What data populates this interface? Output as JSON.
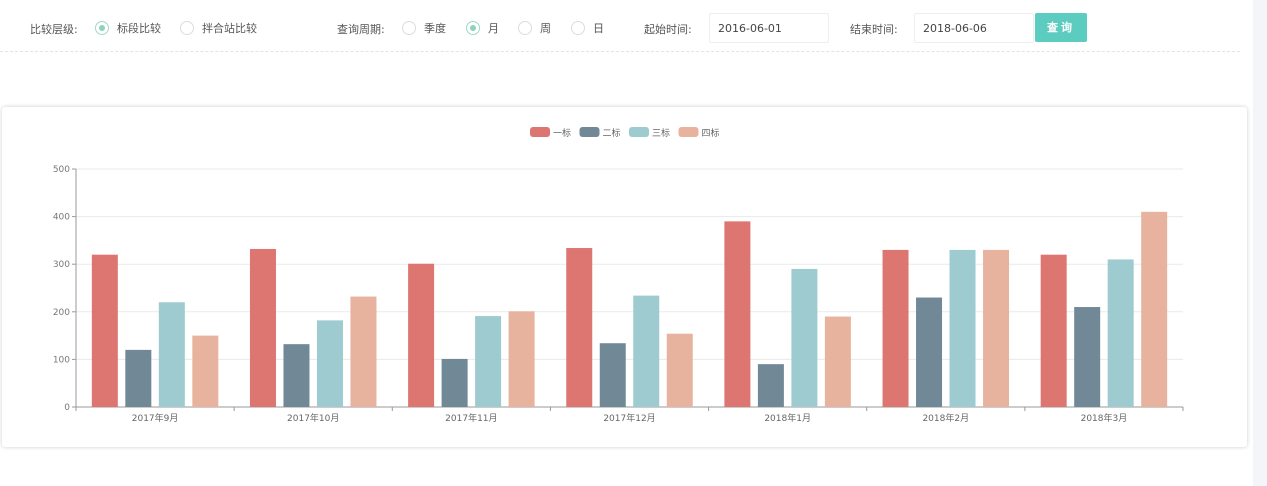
{
  "filters": {
    "level_label": "比较层级:",
    "level_options": [
      {
        "label": "标段比较",
        "selected": true
      },
      {
        "label": "拌合站比较",
        "selected": false
      }
    ],
    "period_label": "查询周期:",
    "period_options": [
      {
        "label": "季度",
        "selected": false
      },
      {
        "label": "月",
        "selected": true
      },
      {
        "label": "周",
        "selected": false
      },
      {
        "label": "日",
        "selected": false
      }
    ],
    "start_label": "起始时间:",
    "start_value": "2016-06-01",
    "end_label": "结束时间:",
    "end_value": "2018-06-06",
    "query_button": "查询",
    "accent": "#5ccbc0"
  },
  "chart_data": {
    "type": "bar",
    "categories": [
      "2017年9月",
      "2017年10月",
      "2017年11月",
      "2017年12月",
      "2018年1月",
      "2018年2月",
      "2018年3月"
    ],
    "series": [
      {
        "name": "一标",
        "color": "#dd7671",
        "values": [
          320,
          332,
          301,
          334,
          390,
          330,
          320
        ]
      },
      {
        "name": "二标",
        "color": "#718896",
        "values": [
          120,
          132,
          101,
          134,
          90,
          230,
          210
        ]
      },
      {
        "name": "三标",
        "color": "#9ecbcf",
        "values": [
          220,
          182,
          191,
          234,
          290,
          330,
          310
        ]
      },
      {
        "name": "四标",
        "color": "#e8b39e",
        "values": [
          150,
          232,
          201,
          154,
          190,
          330,
          410
        ]
      }
    ],
    "ylim": [
      0,
      500
    ],
    "yticks": [
      0,
      100,
      200,
      300,
      400,
      500
    ],
    "grid": true,
    "legend": "top-center"
  }
}
